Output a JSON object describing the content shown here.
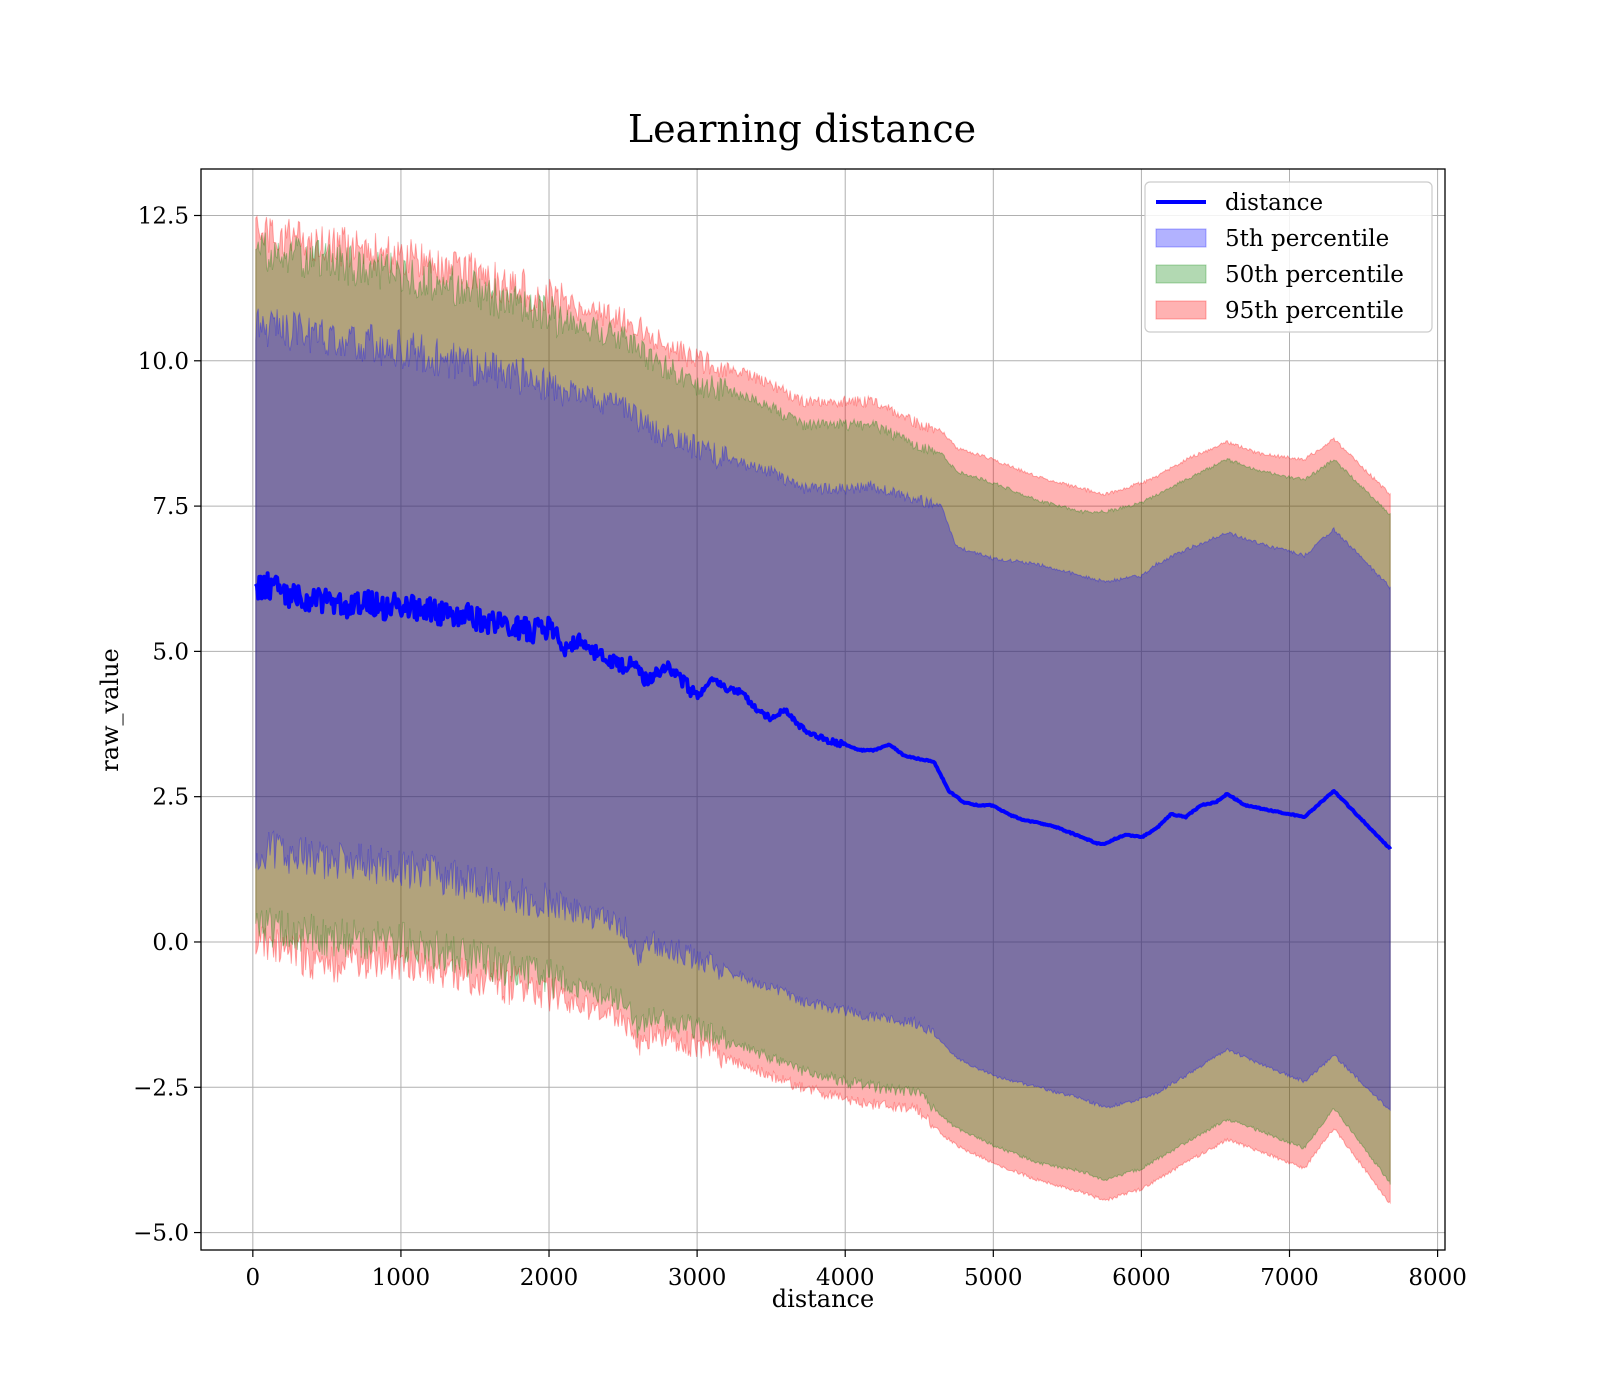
{
  "chart_data": {
    "type": "area",
    "title": "Learning distance",
    "xlabel": "distance",
    "ylabel": "raw_value",
    "xlim": [
      -350,
      8050
    ],
    "ylim": [
      -5.3,
      13.3
    ],
    "x_ticks": [
      0,
      1000,
      2000,
      3000,
      4000,
      5000,
      6000,
      7000,
      8000
    ],
    "x_tick_labels": [
      "0",
      "1000",
      "2000",
      "3000",
      "4000",
      "5000",
      "6000",
      "7000",
      "8000"
    ],
    "y_ticks": [
      -5.0,
      -2.5,
      0.0,
      2.5,
      5.0,
      7.5,
      10.0,
      12.5
    ],
    "y_tick_labels": [
      "−5.0",
      "−2.5",
      "0.0",
      "2.5",
      "5.0",
      "7.5",
      "10.0",
      "12.5"
    ],
    "grid": true,
    "legend_position": "top-right",
    "legend": [
      {
        "label": "distance",
        "kind": "line",
        "color": "#0000ff"
      },
      {
        "label": "5th percentile",
        "kind": "patch",
        "color": "#0000ff"
      },
      {
        "label": "50th percentile",
        "kind": "patch",
        "color": "#008000"
      },
      {
        "label": "95th percentile",
        "kind": "patch",
        "color": "#ff0000"
      }
    ],
    "line_series": {
      "name": "distance",
      "color": "#0000ff",
      "x": [
        20,
        100,
        200,
        300,
        400,
        500,
        600,
        700,
        800,
        900,
        1000,
        1100,
        1200,
        1300,
        1400,
        1500,
        1600,
        1700,
        1800,
        1900,
        2000,
        2100,
        2200,
        2300,
        2400,
        2500,
        2600,
        2650,
        2700,
        2800,
        2900,
        3000,
        3100,
        3200,
        3300,
        3400,
        3500,
        3600,
        3700,
        3800,
        3900,
        4000,
        4100,
        4200,
        4300,
        4400,
        4500,
        4600,
        4700,
        4800,
        4900,
        5000,
        5100,
        5200,
        5300,
        5400,
        5500,
        5600,
        5700,
        5750,
        5800,
        5900,
        6000,
        6100,
        6200,
        6300,
        6400,
        6500,
        6580,
        6700,
        6900,
        7100,
        7300,
        7680
      ],
      "y": [
        6.1,
        6.15,
        6.0,
        5.95,
        5.9,
        5.85,
        5.8,
        5.8,
        5.85,
        5.75,
        5.8,
        5.75,
        5.7,
        5.65,
        5.65,
        5.55,
        5.5,
        5.45,
        5.4,
        5.35,
        5.4,
        5.0,
        5.2,
        5.0,
        4.85,
        4.75,
        4.8,
        4.5,
        4.6,
        4.75,
        4.5,
        4.2,
        4.55,
        4.35,
        4.3,
        4.0,
        3.85,
        4.0,
        3.7,
        3.55,
        3.45,
        3.4,
        3.3,
        3.3,
        3.4,
        3.2,
        3.15,
        3.1,
        2.6,
        2.4,
        2.35,
        2.35,
        2.2,
        2.1,
        2.05,
        2.0,
        1.9,
        1.8,
        1.7,
        1.68,
        1.75,
        1.85,
        1.8,
        1.95,
        2.2,
        2.15,
        2.35,
        2.4,
        2.55,
        2.35,
        2.25,
        2.15,
        2.6,
        1.6
      ]
    },
    "band_series": [
      {
        "name": "95th percentile",
        "color": "#ff0000",
        "x": [
          20,
          500,
          1000,
          1500,
          2000,
          2200,
          2500,
          2600,
          2700,
          3000,
          3200,
          3500,
          3700,
          4000,
          4200,
          4500,
          4650,
          4750,
          5000,
          5300,
          5600,
          5750,
          6000,
          6100,
          6300,
          6580,
          6800,
          7100,
          7300,
          7680
        ],
        "upper": [
          12.2,
          12.0,
          11.8,
          11.5,
          11.1,
          10.9,
          10.7,
          10.6,
          10.4,
          10.0,
          9.9,
          9.6,
          9.3,
          9.3,
          9.3,
          8.9,
          8.8,
          8.5,
          8.3,
          8.0,
          7.8,
          7.7,
          7.9,
          8.0,
          8.3,
          8.6,
          8.4,
          8.3,
          8.65,
          7.7
        ],
        "lower": [
          0.0,
          -0.4,
          -0.3,
          -0.6,
          -0.9,
          -1.1,
          -1.3,
          -1.8,
          -1.6,
          -1.8,
          -2.0,
          -2.3,
          -2.5,
          -2.7,
          -2.8,
          -2.9,
          -3.3,
          -3.5,
          -3.8,
          -4.1,
          -4.3,
          -4.45,
          -4.25,
          -4.1,
          -3.8,
          -3.4,
          -3.6,
          -3.9,
          -3.2,
          -4.5
        ]
      },
      {
        "name": "50th percentile",
        "color": "#008000",
        "x": [
          20,
          500,
          1000,
          1500,
          2000,
          2200,
          2500,
          2600,
          2700,
          3000,
          3200,
          3500,
          3700,
          4000,
          4200,
          4500,
          4650,
          4750,
          5000,
          5300,
          5600,
          5750,
          6000,
          6100,
          6300,
          6580,
          6800,
          7100,
          7300,
          7680
        ],
        "upper": [
          11.9,
          11.7,
          11.5,
          11.2,
          10.8,
          10.6,
          10.4,
          10.2,
          10.0,
          9.6,
          9.5,
          9.2,
          8.9,
          8.9,
          8.9,
          8.5,
          8.4,
          8.1,
          7.9,
          7.6,
          7.4,
          7.4,
          7.55,
          7.7,
          7.95,
          8.3,
          8.1,
          7.95,
          8.3,
          7.35
        ],
        "lower": [
          0.3,
          0.1,
          0.0,
          -0.3,
          -0.6,
          -0.8,
          -1.0,
          -1.5,
          -1.3,
          -1.5,
          -1.7,
          -2.0,
          -2.2,
          -2.4,
          -2.5,
          -2.6,
          -3.0,
          -3.2,
          -3.5,
          -3.8,
          -3.95,
          -4.1,
          -3.9,
          -3.75,
          -3.45,
          -3.05,
          -3.25,
          -3.55,
          -2.85,
          -4.15
        ]
      },
      {
        "name": "5th percentile",
        "color": "#0000ff",
        "x": [
          20,
          500,
          1000,
          1500,
          2000,
          2200,
          2500,
          2600,
          2700,
          3000,
          3200,
          3500,
          3700,
          4000,
          4200,
          4500,
          4650,
          4750,
          5000,
          5300,
          5600,
          5750,
          6000,
          6100,
          6300,
          6580,
          6800,
          7100,
          7300,
          7680
        ],
        "upper": [
          10.6,
          10.4,
          10.2,
          9.9,
          9.6,
          9.4,
          9.2,
          9.0,
          8.8,
          8.5,
          8.3,
          8.1,
          7.8,
          7.8,
          7.85,
          7.6,
          7.5,
          6.8,
          6.6,
          6.5,
          6.3,
          6.2,
          6.3,
          6.5,
          6.75,
          7.05,
          6.85,
          6.65,
          7.1,
          6.1
        ],
        "lower": [
          1.6,
          1.4,
          1.3,
          1.0,
          0.7,
          0.5,
          0.3,
          -0.2,
          0.0,
          -0.3,
          -0.5,
          -0.8,
          -1.0,
          -1.2,
          -1.3,
          -1.4,
          -1.7,
          -2.0,
          -2.3,
          -2.5,
          -2.7,
          -2.85,
          -2.7,
          -2.6,
          -2.3,
          -1.85,
          -2.1,
          -2.4,
          -1.95,
          -2.9
        ]
      }
    ]
  }
}
